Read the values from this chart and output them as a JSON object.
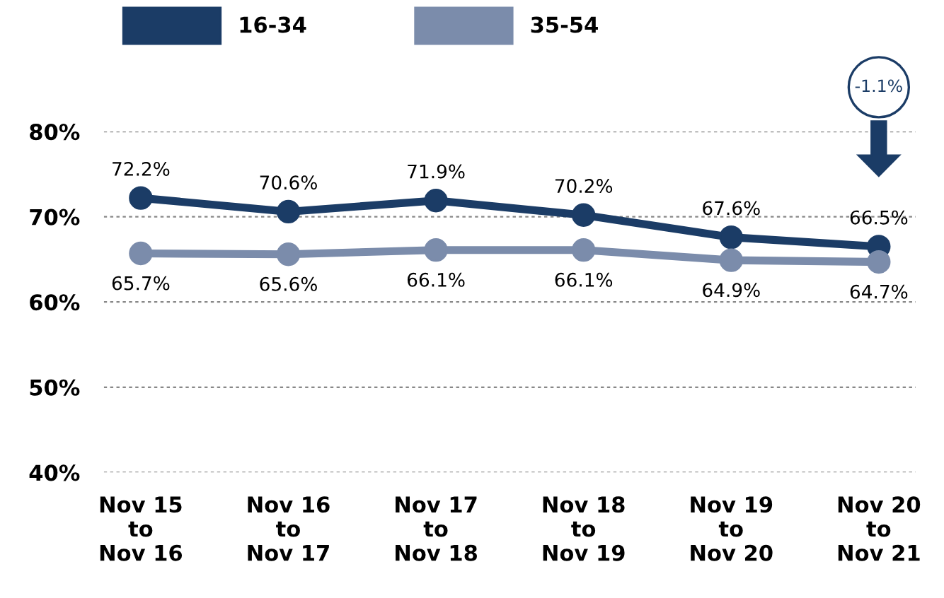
{
  "chart_data": {
    "type": "line",
    "categories": [
      "Nov 15\nto\nNov 16",
      "Nov 16\nto\nNov 17",
      "Nov 17\nto\nNov 18",
      "Nov 18\nto\nNov 19",
      "Nov 19\nto\nNov 20",
      "Nov 20\nto\nNov 21"
    ],
    "series": [
      {
        "name": "16-34",
        "color": "#1b3c66",
        "values": [
          72.2,
          70.6,
          71.9,
          70.2,
          67.6,
          66.5
        ],
        "value_labels": [
          "72.2%",
          "70.6%",
          "71.9%",
          "70.2%",
          "67.6%",
          "66.5%"
        ]
      },
      {
        "name": "35-54",
        "color": "#7b8cab",
        "values": [
          65.7,
          65.6,
          66.1,
          66.1,
          64.9,
          64.7
        ],
        "value_labels": [
          "65.7%",
          "65.6%",
          "66.1%",
          "66.1%",
          "64.9%",
          "64.7%"
        ]
      }
    ],
    "ylim": [
      40,
      80
    ],
    "yticks": [
      {
        "value": 40,
        "label": "40%"
      },
      {
        "value": 50,
        "label": "50%"
      },
      {
        "value": 60,
        "label": "60%"
      },
      {
        "value": 70,
        "label": "70%"
      },
      {
        "value": 80,
        "label": "80%"
      }
    ],
    "grid": "y",
    "legend": "top left",
    "marker": "circle",
    "line_style": "solid",
    "annotations": [
      "-1.1%"
    ]
  }
}
